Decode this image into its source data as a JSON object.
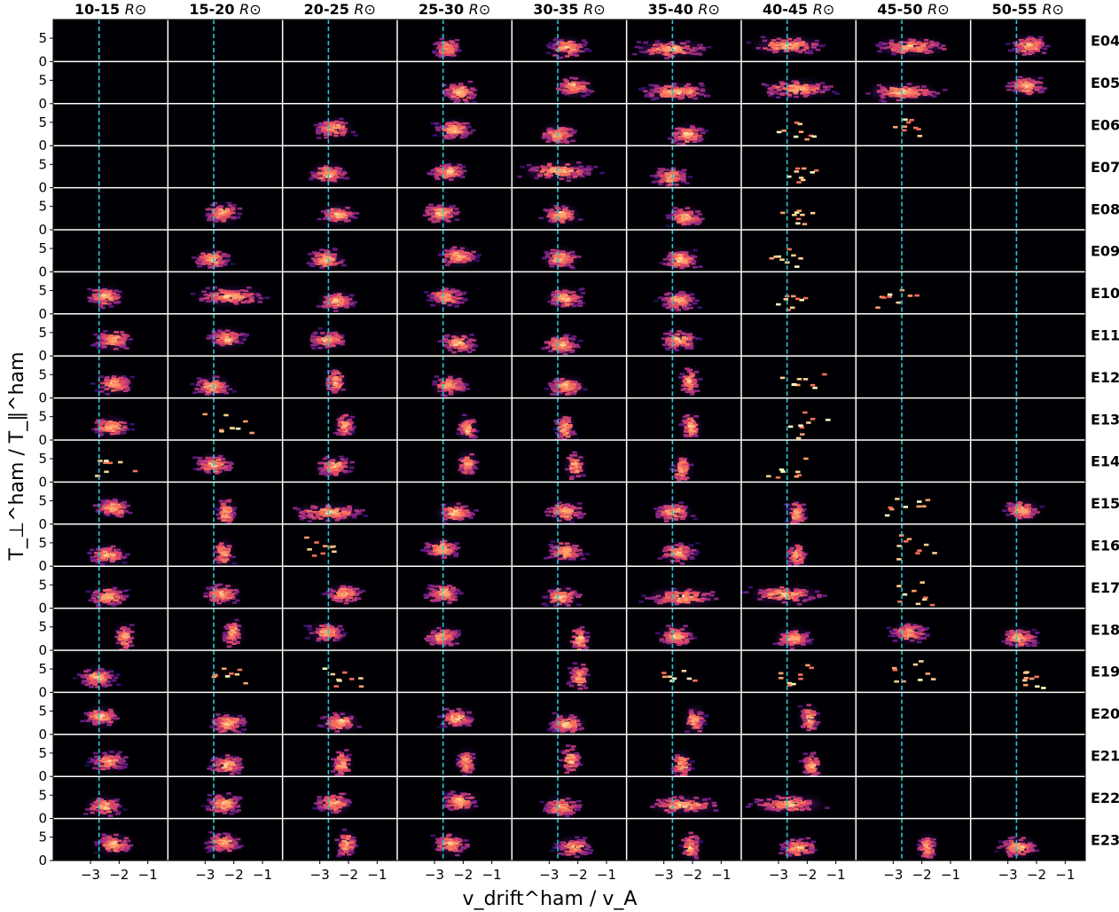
{
  "chart_data": {
    "type": "heatmap",
    "layout": "small-multiples grid (rows = encounters, columns = radial-distance bins)",
    "columns": [
      "10-15",
      "15-20",
      "20-25",
      "25-30",
      "30-35",
      "35-40",
      "40-45",
      "45-50",
      "50-55"
    ],
    "column_unit": "R⊙",
    "rows": [
      "E04",
      "E05",
      "E06",
      "E07",
      "E08",
      "E09",
      "E10",
      "E11",
      "E12",
      "E13",
      "E14",
      "E15",
      "E16",
      "E17",
      "E18",
      "E19",
      "E20",
      "E21",
      "E22",
      "E23"
    ],
    "xlabel": "v_drift^ham / v_A",
    "ylabel": "T_⊥^ham / T_∥^ham",
    "xlim": [
      -4.3,
      -0.3
    ],
    "ylim": [
      0,
      9
    ],
    "xticks": [
      "−3",
      "−2",
      "−1"
    ],
    "yticks": [
      "0",
      "5"
    ],
    "reference_line": {
      "x": -2.7,
      "style": "dashed",
      "color": "#22c8d8"
    },
    "colormap": "magma",
    "background_color": "#000004",
    "grid": false,
    "cells": [
      [
        "",
        "",
        "",
        "A",
        "B",
        "W",
        "W",
        "W",
        "B"
      ],
      [
        "",
        "",
        "",
        "B",
        "B",
        "W",
        "W",
        "W",
        "B"
      ],
      [
        "",
        "",
        "B",
        "B",
        "B",
        "B",
        "S",
        "S",
        ""
      ],
      [
        "",
        "",
        "B",
        "B",
        "W",
        "B",
        "S",
        "",
        ""
      ],
      [
        "",
        "B",
        "B",
        "B",
        "B",
        "B",
        "S",
        "",
        ""
      ],
      [
        "",
        "B",
        "B",
        "B",
        "B",
        "B",
        "S",
        "",
        ""
      ],
      [
        "B",
        "W",
        "B",
        "B",
        "B",
        "B",
        "S",
        "S",
        ""
      ],
      [
        "B",
        "B",
        "B",
        "B",
        "B",
        "B",
        "",
        "",
        ""
      ],
      [
        "B",
        "B",
        "C",
        "B",
        "B",
        "C",
        "S",
        "",
        ""
      ],
      [
        "B",
        "S",
        "C",
        "C",
        "C",
        "C",
        "S",
        "",
        ""
      ],
      [
        "S",
        "B",
        "B",
        "C",
        "C",
        "C",
        "S",
        "",
        ""
      ],
      [
        "B",
        "C",
        "W",
        "B",
        "B",
        "B",
        "C",
        "S",
        "B"
      ],
      [
        "B",
        "C",
        "S",
        "B",
        "B",
        "B",
        "C",
        "S",
        ""
      ],
      [
        "B",
        "B",
        "B",
        "B",
        "B",
        "W",
        "W",
        "S",
        ""
      ],
      [
        "C",
        "C",
        "B",
        "B",
        "C",
        "B",
        "B",
        "B",
        "B"
      ],
      [
        "B",
        "S",
        "S",
        "",
        "C",
        "S",
        "S",
        "S",
        "S"
      ],
      [
        "B",
        "B",
        "B",
        "B",
        "B",
        "C",
        "C",
        "",
        ""
      ],
      [
        "B",
        "B",
        "C",
        "C",
        "C",
        "C",
        "C",
        "",
        ""
      ],
      [
        "B",
        "B",
        "B",
        "B",
        "B",
        "W",
        "W",
        "",
        ""
      ],
      [
        "B",
        "B",
        "C",
        "B",
        "B",
        "C",
        "B",
        "C",
        "B"
      ]
    ]
  }
}
